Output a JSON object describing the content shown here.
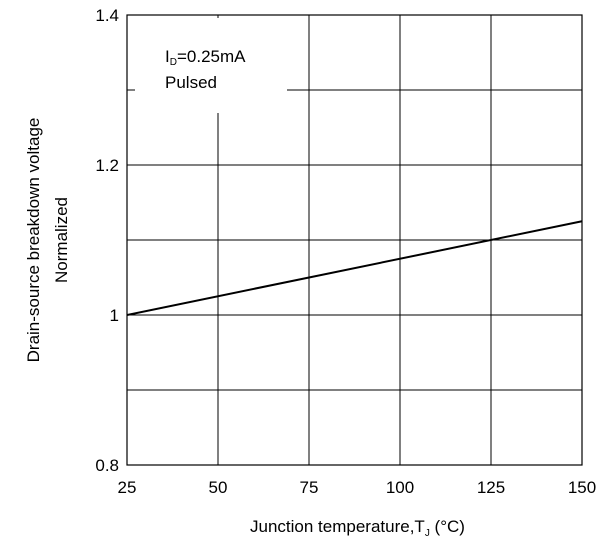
{
  "chart_data": {
    "type": "line",
    "xlabel": "Junction temperature,T",
    "xlabel_subscript": "J",
    "xlabel_unit": " (°C)",
    "ylabel": "Drain-source breakdown voltage",
    "ylabel_line2": "Normalized",
    "xlim": [
      25,
      150
    ],
    "ylim": [
      0.8,
      1.4
    ],
    "x_ticks": [
      25,
      50,
      75,
      100,
      125,
      150
    ],
    "x_tick_labels": [
      "25",
      "50",
      "75",
      "100",
      "125",
      "150"
    ],
    "y_ticks": [
      0.8,
      1.0,
      1.2,
      1.4
    ],
    "y_tick_labels": [
      "0.8",
      "1",
      "1.2",
      "1.4"
    ],
    "y_minor_grid": [
      0.9,
      1.1,
      1.3
    ],
    "grid": true,
    "series": [
      {
        "x": [
          25,
          150
        ],
        "y": [
          1.0,
          1.125
        ],
        "color": "#000000"
      }
    ],
    "annotation": {
      "line1_prefix": "I",
      "line1_subscript": "D",
      "line1_value": "=0.25mA",
      "line2": "Pulsed"
    }
  }
}
